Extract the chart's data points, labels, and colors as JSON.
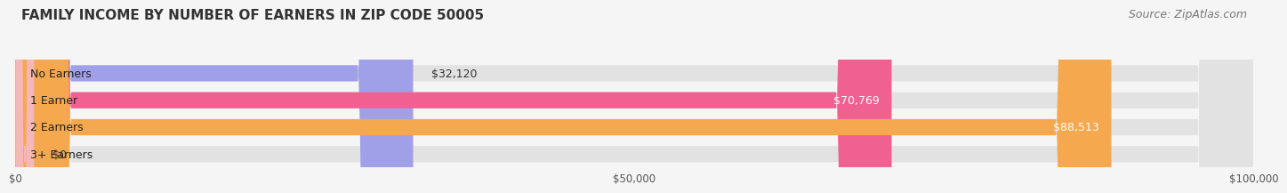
{
  "title": "FAMILY INCOME BY NUMBER OF EARNERS IN ZIP CODE 50005",
  "source": "Source: ZipAtlas.com",
  "categories": [
    "No Earners",
    "1 Earner",
    "2 Earners",
    "3+ Earners"
  ],
  "values": [
    32120,
    70769,
    88513,
    0
  ],
  "bar_colors": [
    "#a0a0e8",
    "#f06090",
    "#f5a84e",
    "#f5b8b8"
  ],
  "bar_bg_color": "#e2e2e2",
  "value_labels": [
    "$32,120",
    "$70,769",
    "$88,513",
    "$0"
  ],
  "value_inside": [
    false,
    true,
    true,
    false
  ],
  "xlim": [
    0,
    100000
  ],
  "xticks": [
    0,
    50000,
    100000
  ],
  "xtick_labels": [
    "$0",
    "$50,000",
    "$100,000"
  ],
  "background_color": "#f5f5f5",
  "title_fontsize": 11,
  "source_fontsize": 9,
  "label_fontsize": 9,
  "value_fontsize": 9
}
